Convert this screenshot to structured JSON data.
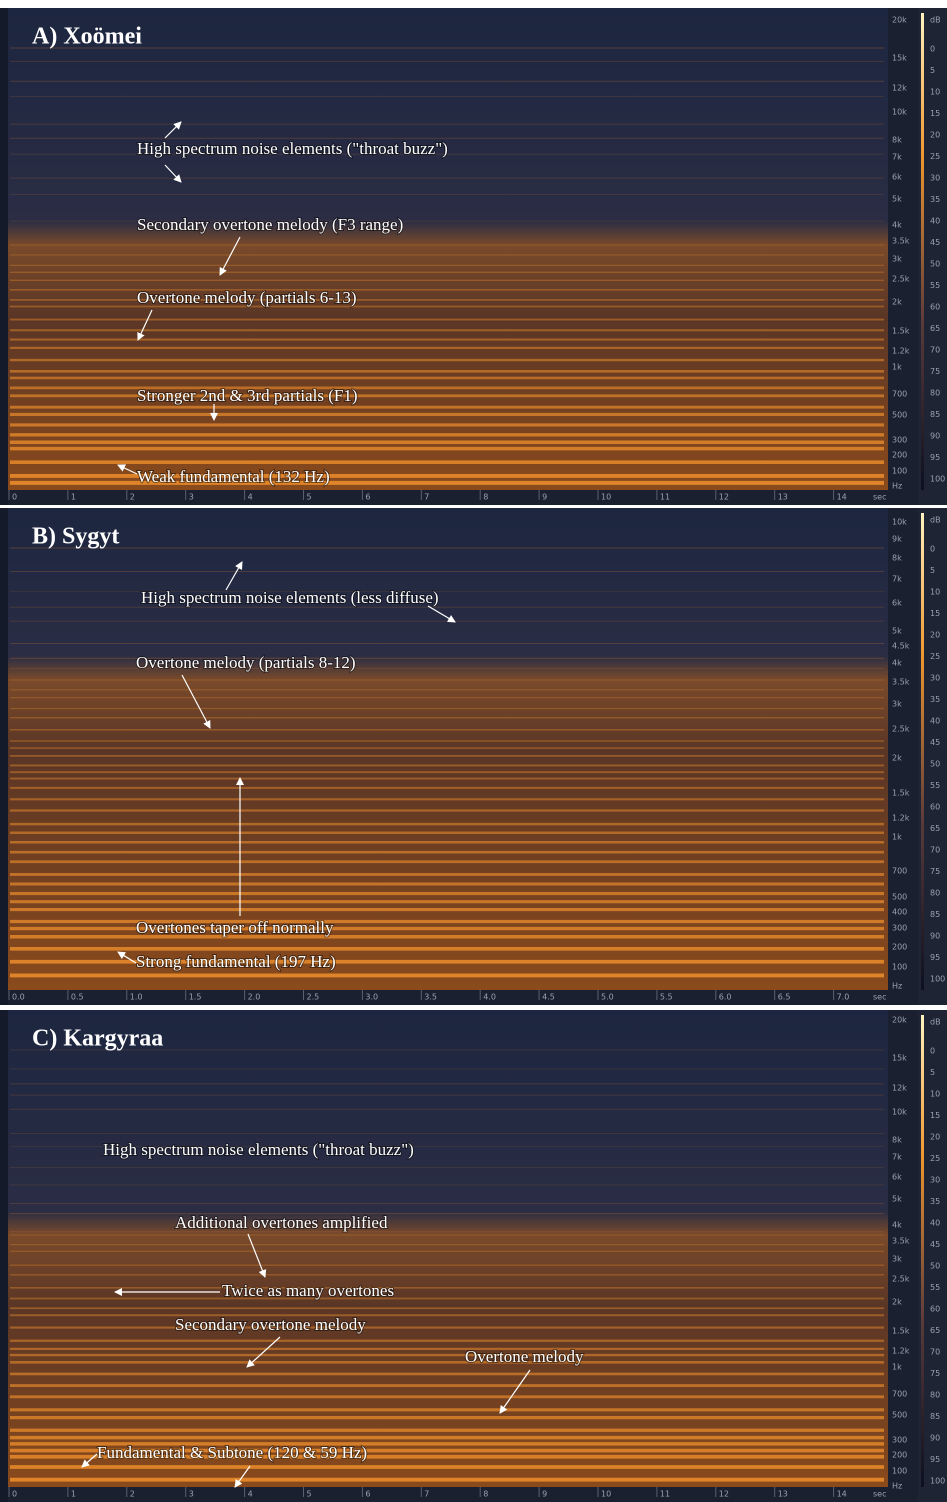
{
  "panels": [
    {
      "title": "A) Xoömei",
      "annotations": [
        "High spectrum noise elements (\"throat buzz\")",
        "Secondary overtone melody (F3 range)",
        "Overtone melody (partials 6-13)",
        "Stronger 2nd & 3rd partials (F1)",
        "Weak fundamental (132 Hz)"
      ],
      "frequency_labels": [
        "20k",
        "15k",
        "12k",
        "10k",
        "8k",
        "7k",
        "6k",
        "5k",
        "4k",
        "3.5k",
        "3k",
        "2.5k",
        "2k",
        "1.5k",
        "1.2k",
        "1k",
        "700",
        "500",
        "300",
        "200",
        "100",
        "Hz"
      ],
      "db_labels": [
        "dB",
        "0",
        "5",
        "10",
        "15",
        "20",
        "25",
        "30",
        "35",
        "40",
        "45",
        "50",
        "55",
        "60",
        "65",
        "70",
        "75",
        "80",
        "85",
        "90",
        "95",
        "100"
      ],
      "time_labels": [
        "0",
        "1",
        "2",
        "3",
        "4",
        "5",
        "6",
        "7",
        "8",
        "9",
        "10",
        "11",
        "12",
        "13",
        "14",
        "sec"
      ]
    },
    {
      "title": "B) Sygyt",
      "annotations": [
        "High spectrum noise elements (less  diffuse)",
        "Overtone melody (partials 8-12)",
        "Overtones taper off normally",
        "Strong fundamental (197 Hz)"
      ],
      "frequency_labels": [
        "10k",
        "9k",
        "8k",
        "7k",
        "6k",
        "5k",
        "4.5k",
        "4k",
        "3.5k",
        "3k",
        "2.5k",
        "2k",
        "1.5k",
        "1.2k",
        "1k",
        "700",
        "500",
        "400",
        "300",
        "200",
        "100",
        "Hz"
      ],
      "db_labels": [
        "dB",
        "0",
        "5",
        "10",
        "15",
        "20",
        "25",
        "30",
        "35",
        "40",
        "45",
        "50",
        "55",
        "60",
        "65",
        "70",
        "75",
        "80",
        "85",
        "90",
        "95",
        "100"
      ],
      "time_labels": [
        "0.0",
        "0.5",
        "1.0",
        "1.5",
        "2.0",
        "2.5",
        "3.0",
        "3.5",
        "4.0",
        "4.5",
        "5.0",
        "5.5",
        "6.0",
        "6.5",
        "7.0",
        "sec"
      ]
    },
    {
      "title": "C) Kargyraa",
      "annotations": [
        "High spectrum noise elements (\"throat buzz\")",
        "Additional overtones amplified",
        "Twice as many overtones",
        "Secondary overtone melody",
        "Overtone melody",
        "Fundamental & Subtone (120 & 59 Hz)"
      ],
      "frequency_labels": [
        "20k",
        "15k",
        "12k",
        "10k",
        "8k",
        "7k",
        "6k",
        "5k",
        "4k",
        "3.5k",
        "3k",
        "2.5k",
        "2k",
        "1.5k",
        "1.2k",
        "1k",
        "700",
        "500",
        "300",
        "200",
        "100",
        "Hz"
      ],
      "db_labels": [
        "dB",
        "0",
        "5",
        "10",
        "15",
        "20",
        "25",
        "30",
        "35",
        "40",
        "45",
        "50",
        "55",
        "60",
        "65",
        "70",
        "75",
        "80",
        "85",
        "90",
        "95",
        "100"
      ],
      "time_labels": [
        "0",
        "1",
        "2",
        "3",
        "4",
        "5",
        "6",
        "7",
        "8",
        "9",
        "10",
        "11",
        "12",
        "13",
        "14",
        "sec"
      ]
    }
  ]
}
